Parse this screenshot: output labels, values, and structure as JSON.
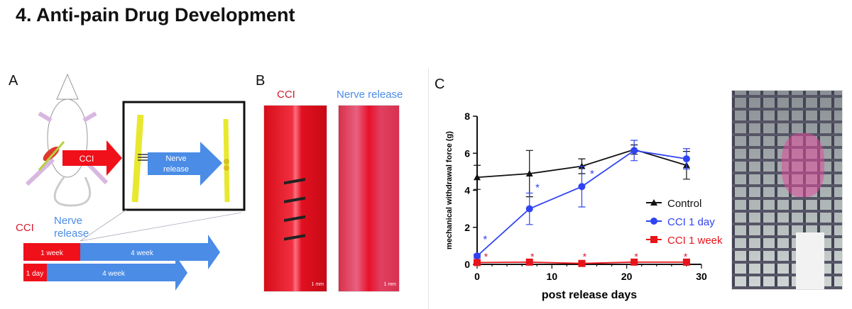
{
  "title": "4. Anti-pain Drug Development",
  "panel_a": {
    "label": "A",
    "cci_arrow": "CCI",
    "nerve_release_arrow": [
      "Nerve",
      "release"
    ],
    "timeline_cci": "CCI",
    "timeline_release": [
      "Nerve",
      "release"
    ],
    "row1": {
      "cci": "1 week",
      "release": "4 week"
    },
    "row2": {
      "cci": "1 day",
      "release": "4 week"
    }
  },
  "panel_b": {
    "label": "B",
    "left_title": "CCI",
    "right_title": "Nerve release",
    "scale_bar": "1 mm"
  },
  "panel_c": {
    "label": "C"
  },
  "colors": {
    "red": "#e3151b",
    "blue": "#3d85e0",
    "control": "#111111",
    "cci1day": "#2f43f2",
    "cci1week": "#e8141b"
  },
  "chart_data": {
    "type": "line",
    "xlabel": "post release days",
    "ylabel": "mechanical withdrawal force (g)",
    "xlim": [
      0,
      30
    ],
    "ylim": [
      0,
      8
    ],
    "xticks": [
      "0",
      "10",
      "20",
      "30"
    ],
    "yticks": [
      "0",
      "2",
      "4",
      "6",
      "8"
    ],
    "legend_position": "right",
    "x": [
      0,
      7,
      14,
      21,
      28
    ],
    "series": [
      {
        "name": "Control",
        "marker": "triangle",
        "values": [
          4.7,
          4.9,
          5.3,
          6.2,
          5.35
        ],
        "errors": [
          0.65,
          1.25,
          0.4,
          0.25,
          0.75
        ]
      },
      {
        "name": "CCI 1 day",
        "marker": "circle",
        "values": [
          0.45,
          3.0,
          4.2,
          6.15,
          5.7
        ],
        "errors": [
          0.1,
          0.85,
          1.1,
          0.55,
          0.55
        ]
      },
      {
        "name": "CCI 1 week",
        "marker": "square",
        "values": [
          0.1,
          0.12,
          0.05,
          0.12,
          0.12
        ],
        "errors": [
          0.05,
          0.05,
          0.05,
          0.05,
          0.05
        ]
      }
    ],
    "annotations": "* significance markers"
  }
}
